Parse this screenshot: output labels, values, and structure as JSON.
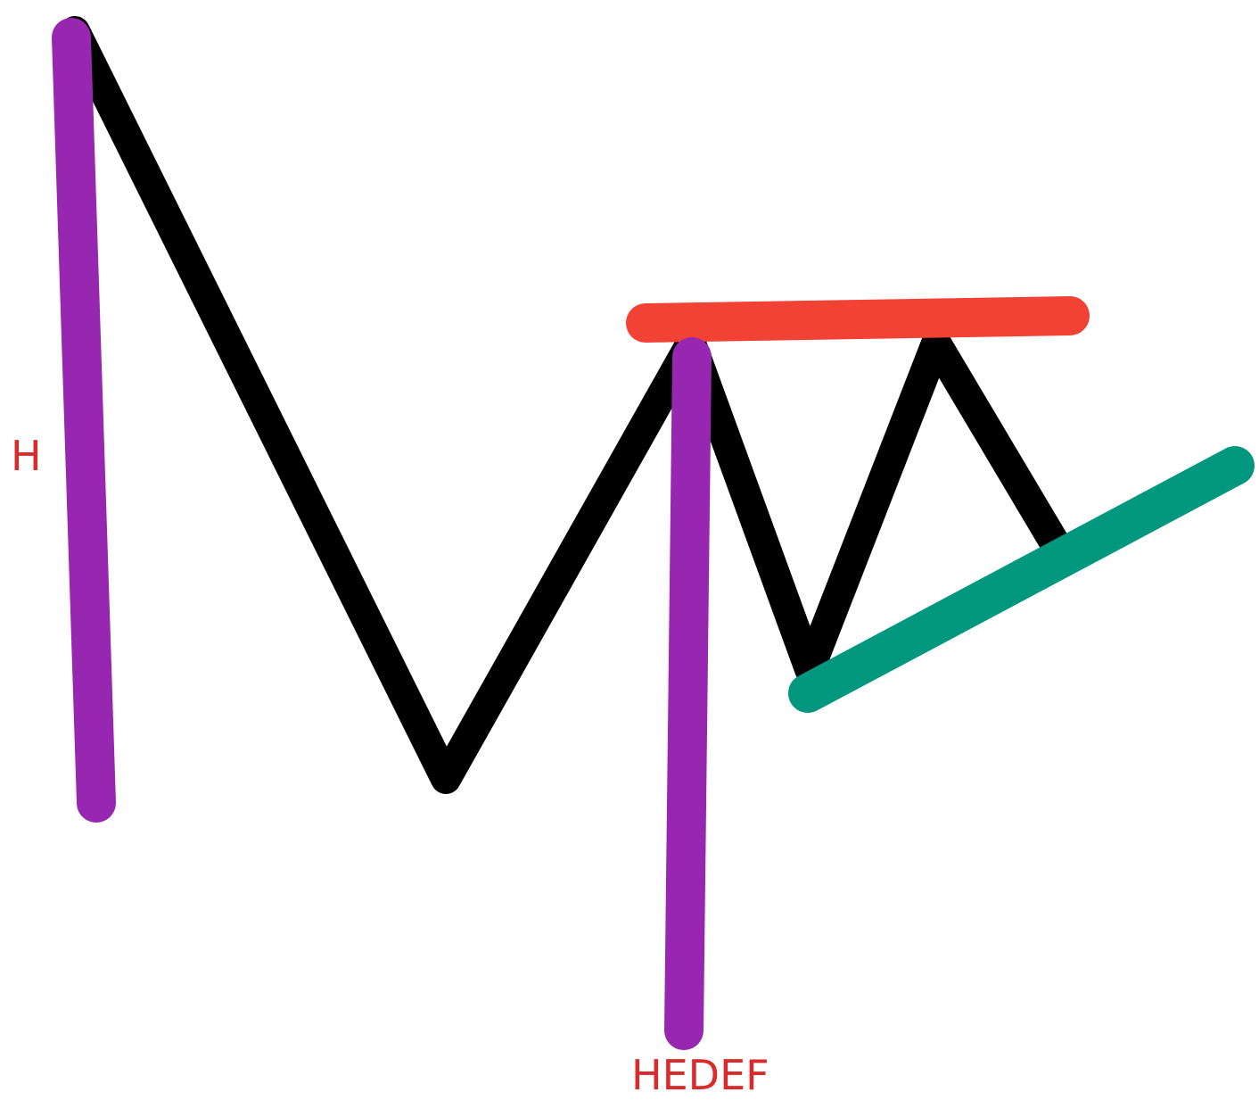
{
  "labels": {
    "height": "H",
    "target": "HEDEF"
  },
  "colors": {
    "background": "#ffffff",
    "price_path": "#000000",
    "measure_lines": "#9726b0",
    "resistance": "#f24236",
    "support": "#00977f",
    "label_text": "#d92b2b"
  },
  "diagram": {
    "elements": [
      "price-path",
      "height-measure-line",
      "target-measure-line",
      "resistance-line",
      "support-trendline"
    ]
  }
}
